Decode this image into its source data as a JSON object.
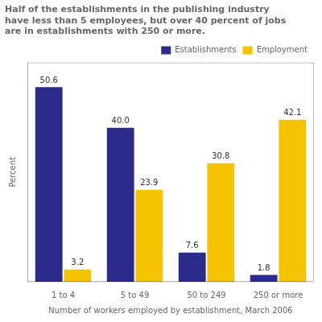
{
  "chart_data": {
    "type": "bar",
    "title": [
      "Half of the establishments in the publishing industry",
      "have less than 5 employees, but over 40 percent of jobs",
      "are in establishments with 250 or more."
    ],
    "ylabel": "Percent",
    "xlabel": "Number of workers employed by establishment, March 2006",
    "categories": [
      "1 to 4",
      "5 to 49",
      "50 to 249",
      "250 or more"
    ],
    "series": [
      {
        "name": "Establishments",
        "color": "#2B2B8C",
        "values": [
          50.6,
          40.0,
          7.6,
          1.8
        ],
        "value_labels": [
          "50.6",
          "40.0",
          "7.6",
          "1.8"
        ]
      },
      {
        "name": "Employment",
        "color": "#F5C400",
        "values": [
          3.2,
          23.9,
          30.8,
          42.1
        ],
        "value_labels": [
          "3.2",
          "23.9",
          "30.8",
          "42.1"
        ]
      }
    ],
    "ylim": [
      0,
      57
    ],
    "grid": false,
    "legend": "upper right",
    "data_labels": true,
    "tick_labels": "x"
  }
}
